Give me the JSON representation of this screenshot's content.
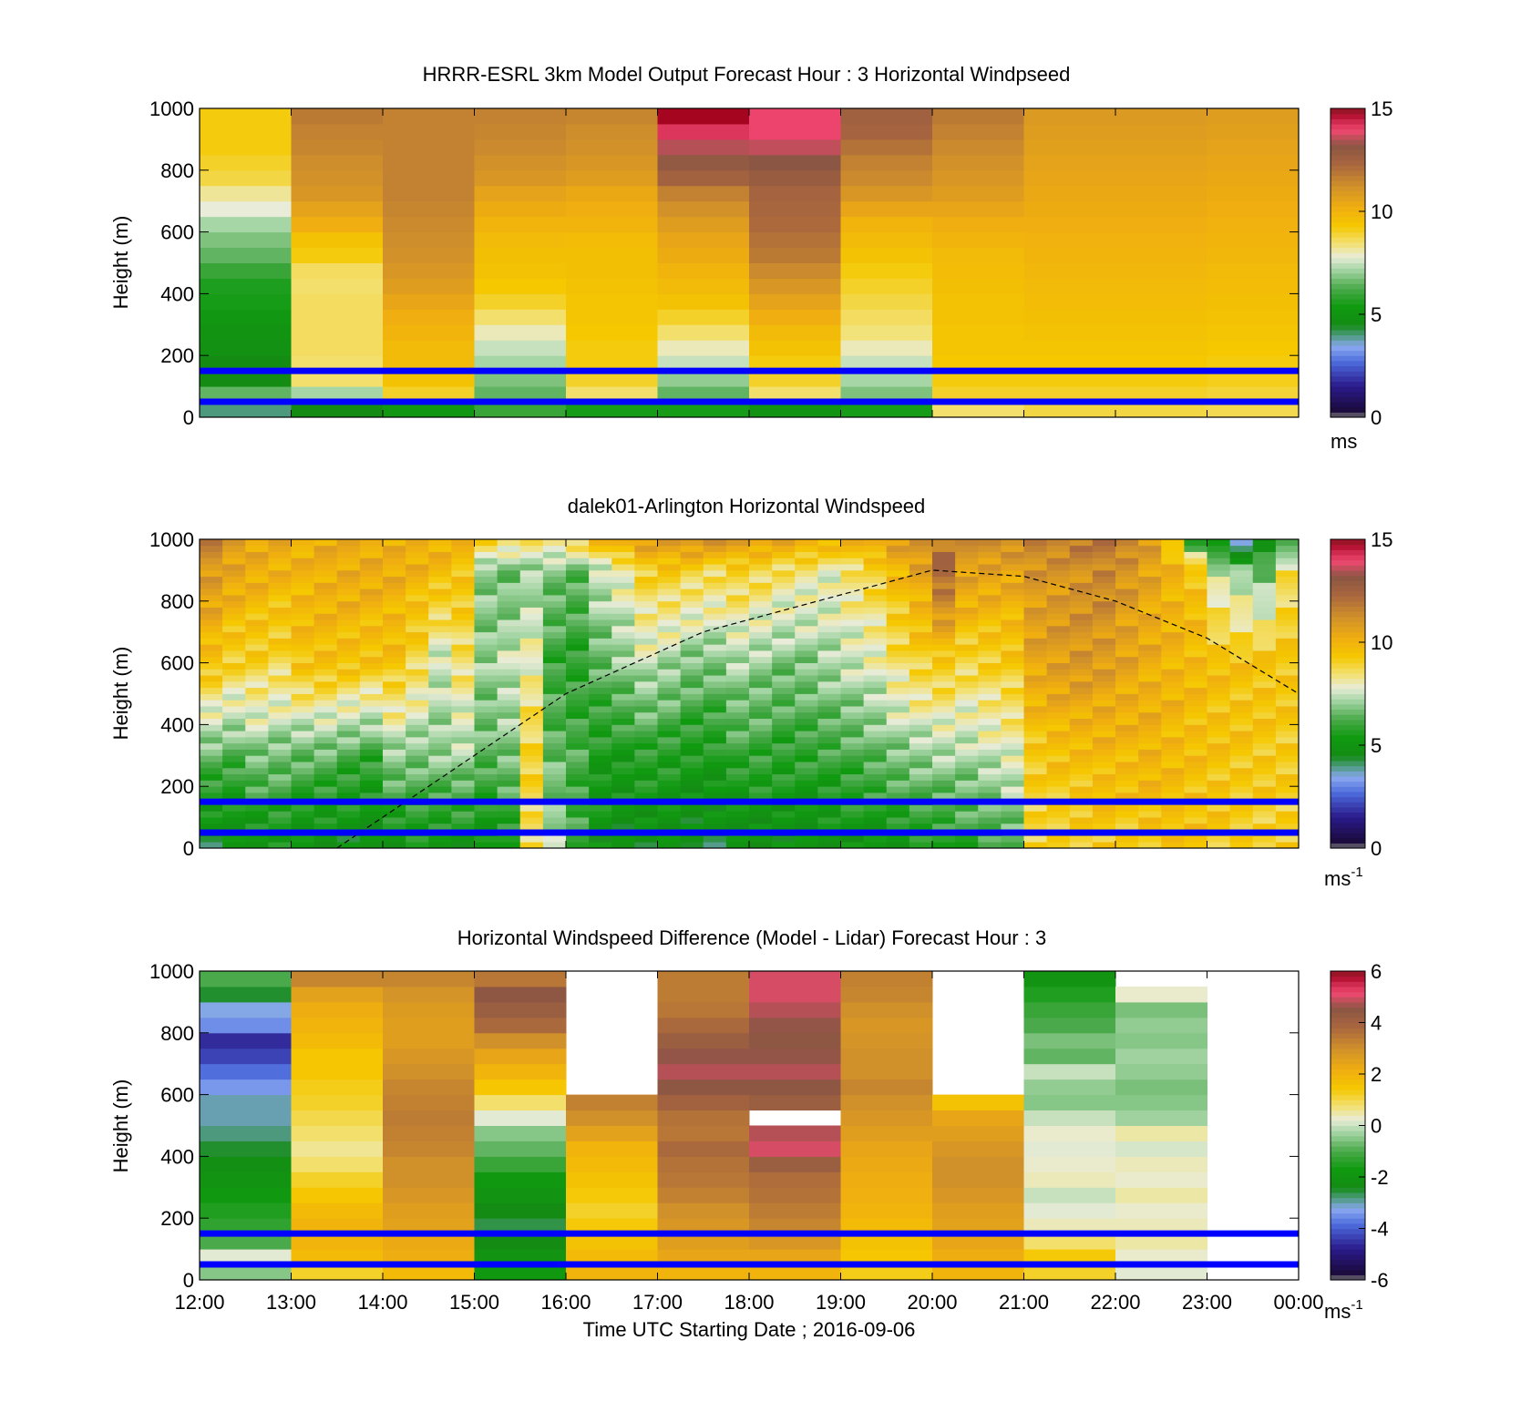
{
  "figure": {
    "xlabel": "Time UTC  Starting Date ; 2016-09-06",
    "x_ticks": [
      "12:00",
      "13:00",
      "14:00",
      "15:00",
      "16:00",
      "17:00",
      "18:00",
      "19:00",
      "20:00",
      "21:00",
      "22:00",
      "23:00",
      "00:00"
    ],
    "y_ticks": [
      "0",
      "200",
      "400",
      "600",
      "800",
      "1000"
    ],
    "guide_lines_m": [
      50,
      150
    ],
    "guide_color": "#0000ff"
  },
  "chart_data": [
    {
      "type": "heatmap",
      "title": "HRRR-ESRL 3km Model Output   Forecast Hour : 3 Horizontal Windpseed",
      "ylabel": "Height (m)",
      "xlim": [
        "12:00",
        "00:00"
      ],
      "ylim": [
        0,
        1000
      ],
      "colorbar": {
        "ticks": [
          "0",
          "5",
          "10",
          "15"
        ],
        "range": [
          0,
          15
        ],
        "unit": "ms"
      },
      "hours": [
        "12:00",
        "13:00",
        "14:00",
        "15:00",
        "16:00",
        "17:00",
        "18:00",
        "19:00",
        "20:00",
        "21:00",
        "22:00",
        "23:00"
      ],
      "heights_m": [
        25,
        75,
        125,
        175,
        225,
        275,
        325,
        375,
        425,
        475,
        525,
        575,
        625,
        675,
        725,
        775,
        825,
        875,
        925,
        975
      ],
      "values_ms": [
        [
          4.0,
          6.5,
          4.5,
          4.5,
          4.8,
          5.0,
          5.2,
          5.5,
          5.6,
          6.0,
          6.5,
          6.8,
          7.2,
          7.8,
          8.2,
          8.8,
          9.0,
          9.2,
          9.2,
          9.2
        ],
        [
          4.5,
          7.2,
          8.5,
          8.5,
          8.6,
          8.6,
          8.6,
          8.6,
          8.5,
          8.6,
          9.2,
          9.5,
          10.2,
          10.6,
          11.0,
          11.2,
          11.3,
          11.5,
          11.6,
          11.8
        ],
        [
          5.2,
          9.0,
          9.5,
          9.8,
          9.8,
          10.0,
          10.2,
          10.5,
          10.8,
          11.0,
          11.2,
          11.3,
          11.4,
          11.5,
          11.6,
          11.6,
          11.6,
          11.6,
          11.6,
          11.6
        ],
        [
          6.0,
          6.5,
          6.8,
          7.2,
          7.5,
          8.0,
          8.5,
          9.0,
          9.3,
          9.5,
          9.6,
          9.8,
          10.0,
          10.3,
          10.6,
          11.0,
          11.2,
          11.4,
          11.5,
          11.6
        ],
        [
          5.5,
          8.5,
          9.0,
          9.2,
          9.2,
          9.3,
          9.4,
          9.4,
          9.5,
          9.6,
          9.6,
          9.7,
          10.0,
          10.2,
          10.4,
          10.8,
          11.0,
          11.2,
          11.3,
          11.5
        ],
        [
          5.5,
          6.5,
          7.0,
          7.5,
          8.0,
          8.5,
          9.0,
          9.5,
          9.8,
          10.0,
          10.3,
          10.5,
          10.8,
          11.2,
          11.6,
          12.5,
          13.0,
          13.5,
          14.2,
          14.8
        ],
        [
          5.0,
          8.5,
          9.0,
          9.2,
          9.5,
          9.8,
          10.2,
          10.6,
          11.0,
          11.4,
          11.8,
          12.0,
          12.2,
          12.3,
          12.4,
          12.8,
          13.2,
          13.6,
          14.0,
          14.0
        ],
        [
          5.5,
          6.8,
          7.2,
          7.5,
          8.0,
          8.4,
          8.6,
          8.8,
          9.0,
          9.2,
          9.5,
          9.8,
          10.0,
          10.5,
          11.0,
          11.4,
          11.6,
          12.0,
          12.4,
          12.6
        ],
        [
          8.5,
          9.0,
          9.2,
          9.3,
          9.4,
          9.4,
          9.5,
          9.5,
          9.6,
          9.7,
          9.8,
          10.0,
          10.2,
          10.5,
          10.8,
          11.0,
          11.2,
          11.4,
          11.6,
          11.8
        ],
        [
          8.8,
          9.0,
          9.2,
          9.3,
          9.4,
          9.5,
          9.6,
          9.7,
          9.8,
          9.9,
          10.0,
          10.1,
          10.2,
          10.3,
          10.4,
          10.5,
          10.6,
          10.7,
          10.8,
          10.9
        ],
        [
          8.8,
          9.0,
          9.2,
          9.3,
          9.4,
          9.5,
          9.6,
          9.7,
          9.8,
          9.9,
          10.0,
          10.1,
          10.2,
          10.3,
          10.4,
          10.5,
          10.6,
          10.7,
          10.8,
          10.9
        ],
        [
          8.7,
          8.9,
          9.1,
          9.2,
          9.3,
          9.4,
          9.5,
          9.6,
          9.7,
          9.8,
          9.9,
          10.0,
          10.1,
          10.2,
          10.3,
          10.4,
          10.5,
          10.6,
          10.7,
          10.8
        ]
      ]
    },
    {
      "type": "heatmap",
      "title": "dalek01-Arlington  Horizontal Windspeed",
      "ylabel": "Height (m)",
      "xlim": [
        "12:00",
        "00:00"
      ],
      "ylim": [
        0,
        1000
      ],
      "colorbar": {
        "ticks": [
          "0",
          "5",
          "10",
          "15"
        ],
        "range": [
          0,
          15
        ],
        "unit": "ms",
        "unit_sup": "-1"
      },
      "time_profiles": [
        "12:00",
        "12:15",
        "12:30",
        "12:45",
        "13:00",
        "13:15",
        "13:30",
        "13:45",
        "14:00",
        "14:15",
        "14:30",
        "14:45",
        "15:00",
        "15:15",
        "15:30",
        "15:45",
        "16:00",
        "16:15",
        "16:30",
        "16:45",
        "17:00",
        "17:15",
        "17:30",
        "17:45",
        "18:00",
        "18:15",
        "18:30",
        "18:45",
        "19:00",
        "19:15",
        "19:30",
        "19:45",
        "20:00",
        "20:15",
        "20:30",
        "20:45",
        "21:00",
        "21:15",
        "21:30",
        "21:45",
        "22:00",
        "22:15",
        "22:30",
        "22:45",
        "23:00",
        "23:15",
        "23:30",
        "23:45"
      ],
      "profile_heights_m": [
        0,
        300,
        600,
        900,
        1000
      ],
      "profile_values_ms": [
        [
          4.5,
          6.5,
          9.5,
          11.0,
          11.5
        ],
        [
          4.8,
          6.3,
          9.0,
          10.5,
          11.0
        ],
        [
          5.0,
          6.8,
          9.0,
          10.2,
          10.5
        ],
        [
          5.2,
          6.7,
          8.8,
          10.0,
          10.3
        ],
        [
          5.0,
          6.5,
          9.5,
          10.0,
          10.0
        ],
        [
          4.8,
          6.5,
          9.6,
          10.2,
          10.2
        ],
        [
          4.7,
          6.2,
          9.5,
          10.3,
          10.3
        ],
        [
          4.8,
          6.0,
          9.4,
          10.3,
          10.3
        ],
        [
          5.0,
          7.0,
          9.5,
          10.2,
          10.2
        ],
        [
          5.2,
          6.8,
          8.8,
          10.0,
          10.2
        ],
        [
          5.1,
          7.0,
          7.5,
          9.8,
          10.0
        ],
        [
          5.0,
          7.2,
          8.5,
          9.5,
          9.8
        ],
        [
          5.0,
          6.5,
          7.0,
          6.8,
          9.5
        ],
        [
          5.5,
          6.8,
          7.5,
          6.5,
          9.0
        ],
        [
          8.5,
          9.0,
          8.0,
          7.0,
          8.5
        ],
        [
          7.5,
          6.5,
          6.0,
          6.8,
          8.5
        ],
        [
          6.0,
          6.2,
          5.8,
          6.5,
          9.0
        ],
        [
          5.0,
          5.5,
          6.5,
          7.5,
          10.0
        ],
        [
          4.8,
          5.5,
          7.0,
          8.0,
          10.5
        ],
        [
          4.7,
          5.8,
          7.5,
          9.0,
          11.0
        ],
        [
          4.6,
          5.7,
          7.2,
          9.2,
          11.0
        ],
        [
          4.5,
          5.5,
          6.8,
          9.0,
          11.2
        ],
        [
          4.5,
          5.5,
          6.8,
          8.8,
          11.0
        ],
        [
          4.6,
          6.0,
          7.2,
          9.0,
          11.0
        ],
        [
          4.7,
          6.0,
          7.0,
          8.8,
          10.8
        ],
        [
          4.8,
          5.8,
          6.8,
          8.5,
          10.5
        ],
        [
          4.8,
          5.9,
          6.9,
          8.3,
          10.3
        ],
        [
          4.9,
          6.0,
          7.2,
          8.0,
          10.0
        ],
        [
          5.0,
          6.2,
          7.5,
          8.5,
          10.2
        ],
        [
          5.1,
          6.5,
          7.8,
          9.0,
          10.5
        ],
        [
          5.2,
          6.8,
          8.5,
          9.8,
          11.0
        ],
        [
          5.3,
          7.0,
          9.0,
          10.5,
          11.2
        ],
        [
          5.5,
          7.2,
          9.2,
          12.5,
          11.5
        ],
        [
          5.8,
          7.2,
          8.8,
          10.8,
          11.0
        ],
        [
          6.0,
          7.5,
          9.0,
          10.6,
          11.5
        ],
        [
          6.3,
          7.8,
          9.2,
          10.5,
          11.5
        ],
        [
          8.8,
          9.2,
          10.5,
          11.0,
          11.5
        ],
        [
          9.0,
          9.5,
          10.8,
          11.0,
          11.6
        ],
        [
          9.0,
          9.6,
          11.0,
          11.2,
          11.8
        ],
        [
          9.2,
          9.8,
          10.8,
          11.5,
          12.0
        ],
        [
          9.2,
          9.8,
          10.5,
          11.0,
          11.8
        ],
        [
          9.3,
          10.0,
          10.2,
          10.5,
          11.0
        ],
        [
          9.3,
          9.8,
          10.0,
          10.0,
          9.0
        ],
        [
          9.4,
          9.6,
          9.8,
          9.5,
          5.5
        ],
        [
          9.2,
          9.5,
          9.6,
          7.5,
          4.5
        ],
        [
          9.0,
          9.4,
          9.5,
          7.0,
          3.0
        ],
        [
          9.0,
          9.3,
          9.5,
          6.5,
          5.0
        ],
        [
          9.0,
          9.2,
          9.4,
          8.5,
          5.5
        ]
      ],
      "dashed_curve_m": [
        [
          13.5,
          0
        ],
        [
          14.5,
          200
        ],
        [
          16.0,
          500
        ],
        [
          17.5,
          700
        ],
        [
          20.0,
          900
        ],
        [
          21.0,
          880
        ],
        [
          22.0,
          800
        ],
        [
          23.0,
          680
        ],
        [
          24.0,
          500
        ]
      ]
    },
    {
      "type": "heatmap",
      "title": "Horizontal Windspeed Difference (Model - Lidar) Forecast Hour : 3",
      "ylabel": "Height (m)",
      "xlim": [
        "12:00",
        "00:00"
      ],
      "ylim": [
        0,
        1000
      ],
      "colorbar": {
        "ticks": [
          "-6",
          "-4",
          "-2",
          "0",
          "2",
          "4",
          "6"
        ],
        "range": [
          -6,
          6
        ],
        "unit": "ms",
        "unit_sup": "-1"
      },
      "hours": [
        "12:00",
        "13:00",
        "14:00",
        "15:00",
        "16:00",
        "17:00",
        "18:00",
        "19:00",
        "20:00",
        "21:00",
        "22:00",
        "23:00"
      ],
      "heights_m": [
        25,
        75,
        125,
        175,
        225,
        275,
        325,
        375,
        425,
        475,
        525,
        575,
        625,
        675,
        725,
        775,
        825,
        875,
        925,
        975
      ],
      "values_ms": [
        [
          -0.5,
          0.2,
          -1.0,
          -1.3,
          -1.5,
          -1.8,
          -2.0,
          -2.2,
          -2.5,
          -2.8,
          -3.0,
          -3.0,
          -3.4,
          -3.8,
          -4.3,
          -4.6,
          -3.5,
          -3.2,
          -2.5,
          -1.0
        ],
        [
          1.2,
          1.8,
          2.0,
          2.0,
          1.8,
          1.5,
          1.2,
          0.8,
          0.6,
          0.8,
          1.0,
          1.2,
          1.3,
          1.5,
          1.5,
          1.8,
          2.0,
          2.2,
          2.5,
          3.2
        ],
        [
          1.8,
          2.2,
          2.3,
          2.5,
          2.6,
          2.8,
          3.0,
          3.0,
          3.2,
          3.3,
          3.4,
          3.3,
          3.2,
          3.0,
          2.8,
          2.6,
          2.6,
          2.7,
          2.9,
          3.2
        ],
        [
          -1.8,
          -2.0,
          -2.4,
          -2.6,
          -2.4,
          -2.0,
          -1.8,
          -1.2,
          -0.8,
          -0.5,
          0.2,
          0.8,
          1.5,
          2.0,
          2.4,
          3.0,
          3.8,
          4.2,
          4.5,
          3.5
        ],
        [
          2.0,
          1.8,
          1.6,
          1.4,
          1.2,
          1.4,
          1.6,
          1.8,
          2.0,
          2.5,
          3.0,
          3.3,
          null,
          null,
          null,
          null,
          null,
          null,
          null,
          null
        ],
        [
          2.0,
          2.4,
          2.6,
          2.8,
          3.0,
          3.3,
          3.5,
          3.6,
          3.8,
          3.5,
          3.6,
          4.0,
          4.5,
          4.8,
          4.6,
          4.2,
          3.8,
          3.5,
          3.4,
          3.4
        ],
        [
          2.0,
          2.4,
          2.8,
          3.2,
          3.4,
          3.6,
          3.7,
          4.2,
          5.0,
          4.8,
          null,
          4.2,
          4.5,
          4.8,
          4.6,
          4.5,
          4.6,
          4.8,
          5.0,
          5.0
        ],
        [
          1.3,
          1.5,
          1.6,
          1.8,
          2.0,
          2.1,
          2.2,
          2.3,
          2.4,
          2.6,
          2.8,
          3.0,
          3.2,
          3.0,
          3.0,
          2.9,
          2.8,
          3.0,
          3.2,
          3.3
        ],
        [
          2.0,
          2.2,
          2.4,
          2.5,
          2.6,
          2.8,
          3.0,
          3.0,
          2.8,
          2.6,
          2.4,
          1.6,
          null,
          null,
          null,
          null,
          null,
          null,
          null,
          null
        ],
        [
          1.2,
          1.4,
          0.8,
          0.4,
          0.2,
          0.0,
          0.4,
          0.3,
          0.2,
          0.3,
          0.0,
          -0.5,
          -0.4,
          0.0,
          -0.8,
          -0.6,
          -1.0,
          -1.2,
          -1.5,
          -2.0
        ],
        [
          0.2,
          0.3,
          0.5,
          0.4,
          0.3,
          0.5,
          0.3,
          0.4,
          0.1,
          0.5,
          -0.3,
          -0.5,
          -0.6,
          -0.4,
          -0.3,
          -0.5,
          -0.4,
          -0.6,
          0.3,
          null
        ],
        [
          null,
          null,
          null,
          null,
          null,
          null,
          null,
          null,
          null,
          null,
          null,
          null,
          null,
          null,
          null,
          null,
          null,
          null,
          null,
          null
        ]
      ]
    }
  ]
}
